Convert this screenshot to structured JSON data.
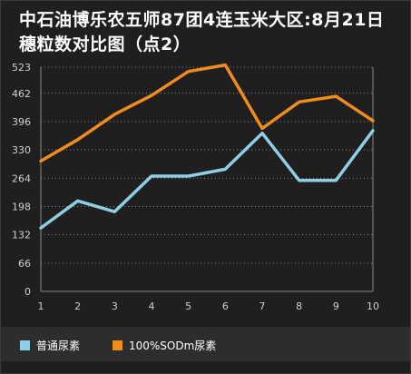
{
  "chart_data": {
    "type": "line",
    "title": "中石油博乐农五师87团4连玉米大区:8月21日穗粒数对比图（点2）",
    "title_lines": [
      "中石油博乐农五师87团4连玉米大区:8月21日",
      "穗粒数对比图（点2）"
    ],
    "x": [
      1,
      2,
      3,
      4,
      5,
      6,
      7,
      8,
      9,
      10
    ],
    "yticks": [
      0,
      66,
      132,
      198,
      264,
      330,
      396,
      462,
      523
    ],
    "ylim": [
      0,
      523
    ],
    "grid": true,
    "legend_position": "bottom",
    "series": [
      {
        "name": "普通尿素",
        "color": "#8ecfe6",
        "values": [
          148,
          211,
          186,
          269,
          269,
          285,
          369,
          259,
          259,
          375
        ]
      },
      {
        "name": "100%SODm尿素",
        "color": "#f08b1e",
        "values": [
          304,
          354,
          413,
          457,
          513,
          528,
          380,
          442,
          455,
          398
        ]
      }
    ]
  }
}
